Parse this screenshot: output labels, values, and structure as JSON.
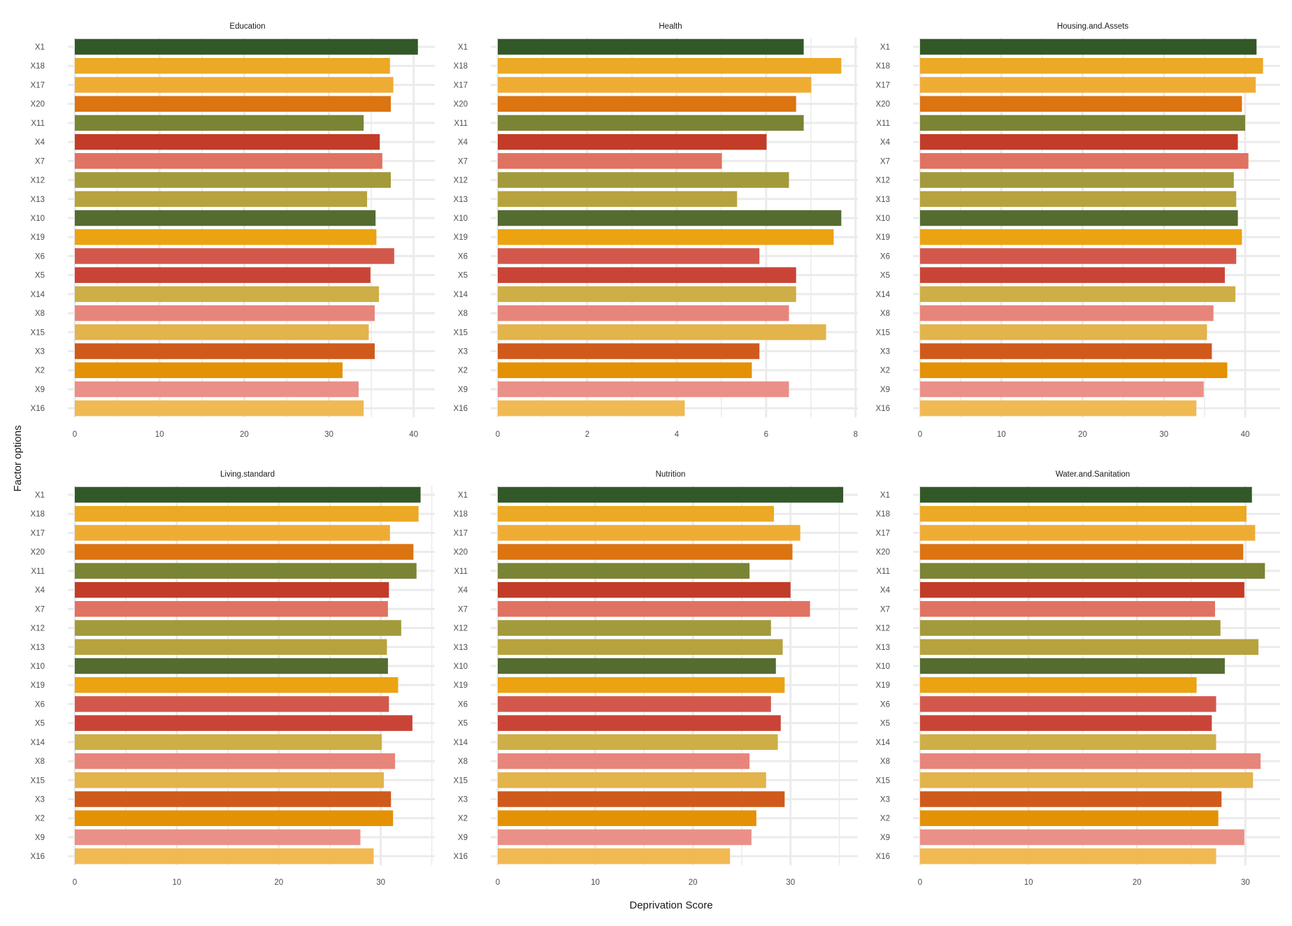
{
  "xlabel": "Deprivation Score",
  "ylabel": "Factor options",
  "categories": [
    "X1",
    "X18",
    "X17",
    "X20",
    "X11",
    "X4",
    "X7",
    "X12",
    "X13",
    "X10",
    "X19",
    "X6",
    "X5",
    "X14",
    "X8",
    "X15",
    "X3",
    "X2",
    "X9",
    "X16"
  ],
  "colors": {
    "X1": "#335828",
    "X18": "#ECA925",
    "X17": "#EFAC35",
    "X20": "#DB7411",
    "X11": "#7B8335",
    "X4": "#C23C27",
    "X7": "#E07262",
    "X12": "#A29A3B",
    "X13": "#B6A33D",
    "X10": "#546C2F",
    "X19": "#EBA312",
    "X6": "#D3584C",
    "X5": "#C94436",
    "X14": "#CEAE46",
    "X8": "#E8857A",
    "X15": "#E3B34C",
    "X3": "#CF5A1B",
    "X2": "#E49105",
    "X9": "#EA9088",
    "X16": "#F1B952"
  },
  "chart_data": [
    {
      "type": "bar",
      "orientation": "horizontal",
      "title": "Education",
      "categories": [
        "X1",
        "X18",
        "X17",
        "X20",
        "X11",
        "X4",
        "X7",
        "X12",
        "X13",
        "X10",
        "X19",
        "X6",
        "X5",
        "X14",
        "X8",
        "X15",
        "X3",
        "X2",
        "X9",
        "X16"
      ],
      "values": [
        40.5,
        37.2,
        37.6,
        37.3,
        34.1,
        36.0,
        36.3,
        37.3,
        34.5,
        35.5,
        35.6,
        37.7,
        34.9,
        35.9,
        35.4,
        34.7,
        35.4,
        31.6,
        33.5,
        34.1
      ],
      "xlim": [
        0,
        42.5
      ],
      "xticks": [
        0,
        10,
        20,
        30,
        40
      ],
      "xticklabels": [
        "0",
        "10",
        "20",
        "30",
        "40"
      ],
      "xlabel": "",
      "ylabel": ""
    },
    {
      "type": "bar",
      "orientation": "horizontal",
      "title": "Health",
      "categories": [
        "X1",
        "X18",
        "X17",
        "X20",
        "X11",
        "X4",
        "X7",
        "X12",
        "X13",
        "X10",
        "X19",
        "X6",
        "X5",
        "X14",
        "X8",
        "X15",
        "X3",
        "X2",
        "X9",
        "X16"
      ],
      "values": [
        6.84,
        7.68,
        7.01,
        6.67,
        6.84,
        6.01,
        5.01,
        6.51,
        5.35,
        7.68,
        7.51,
        5.85,
        6.67,
        6.67,
        6.51,
        7.34,
        5.85,
        5.68,
        6.51,
        4.18
      ],
      "xlim": [
        0,
        8.05
      ],
      "xticks": [
        0,
        2,
        4,
        6,
        8
      ],
      "xticklabels": [
        "0",
        "2",
        "4",
        "6",
        "8"
      ],
      "xlabel": "",
      "ylabel": ""
    },
    {
      "type": "bar",
      "orientation": "horizontal",
      "title": "Housing.and.Assets",
      "categories": [
        "X1",
        "X18",
        "X17",
        "X20",
        "X11",
        "X4",
        "X7",
        "X12",
        "X13",
        "X10",
        "X19",
        "X6",
        "X5",
        "X14",
        "X8",
        "X15",
        "X3",
        "X2",
        "X9",
        "X16"
      ],
      "values": [
        41.4,
        42.2,
        41.3,
        39.6,
        40.0,
        39.1,
        40.4,
        38.6,
        38.9,
        39.1,
        39.6,
        38.9,
        37.5,
        38.8,
        36.1,
        35.3,
        35.9,
        37.8,
        34.9,
        34.0
      ],
      "xlim": [
        0,
        44.3
      ],
      "xticks": [
        0,
        10,
        20,
        30,
        40
      ],
      "xticklabels": [
        "0",
        "10",
        "20",
        "30",
        "40"
      ],
      "xlabel": "",
      "ylabel": ""
    },
    {
      "type": "bar",
      "orientation": "horizontal",
      "title": "Living.standard",
      "categories": [
        "X1",
        "X18",
        "X17",
        "X20",
        "X11",
        "X4",
        "X7",
        "X12",
        "X13",
        "X10",
        "X19",
        "X6",
        "X5",
        "X14",
        "X8",
        "X15",
        "X3",
        "X2",
        "X9",
        "X16"
      ],
      "values": [
        33.9,
        33.7,
        30.9,
        33.2,
        33.5,
        30.8,
        30.7,
        32.0,
        30.6,
        30.7,
        31.7,
        30.8,
        33.1,
        30.1,
        31.4,
        30.3,
        31.0,
        31.2,
        28.0,
        29.3
      ],
      "xlim": [
        0,
        35.3
      ],
      "xticks": [
        0,
        10,
        20,
        30
      ],
      "xticklabels": [
        "0",
        "10",
        "20",
        "30"
      ],
      "xlabel": "",
      "ylabel": ""
    },
    {
      "type": "bar",
      "orientation": "horizontal",
      "title": "Nutrition",
      "categories": [
        "X1",
        "X18",
        "X17",
        "X20",
        "X11",
        "X4",
        "X7",
        "X12",
        "X13",
        "X10",
        "X19",
        "X6",
        "X5",
        "X14",
        "X8",
        "X15",
        "X3",
        "X2",
        "X9",
        "X16"
      ],
      "values": [
        35.4,
        28.3,
        31.0,
        30.2,
        25.8,
        30.0,
        32.0,
        28.0,
        29.2,
        28.5,
        29.4,
        28.0,
        29.0,
        28.7,
        25.8,
        27.5,
        29.4,
        26.5,
        26.0,
        23.8
      ],
      "xlim": [
        0,
        36.9
      ],
      "xticks": [
        0,
        10,
        20,
        30
      ],
      "xticklabels": [
        "0",
        "10",
        "20",
        "30"
      ],
      "xlabel": "",
      "ylabel": ""
    },
    {
      "type": "bar",
      "orientation": "horizontal",
      "title": "Water.and.Sanitation",
      "categories": [
        "X1",
        "X18",
        "X17",
        "X20",
        "X11",
        "X4",
        "X7",
        "X12",
        "X13",
        "X10",
        "X19",
        "X6",
        "X5",
        "X14",
        "X8",
        "X15",
        "X3",
        "X2",
        "X9",
        "X16"
      ],
      "values": [
        30.6,
        30.1,
        30.9,
        29.8,
        31.8,
        29.9,
        27.2,
        27.7,
        31.2,
        28.1,
        25.5,
        27.3,
        26.9,
        27.3,
        31.4,
        30.7,
        27.8,
        27.5,
        29.9,
        27.3
      ],
      "xlim": [
        0,
        33.2
      ],
      "xticks": [
        0,
        10,
        20,
        30
      ],
      "xticklabels": [
        "0",
        "10",
        "20",
        "30"
      ],
      "xlabel": "",
      "ylabel": ""
    }
  ]
}
